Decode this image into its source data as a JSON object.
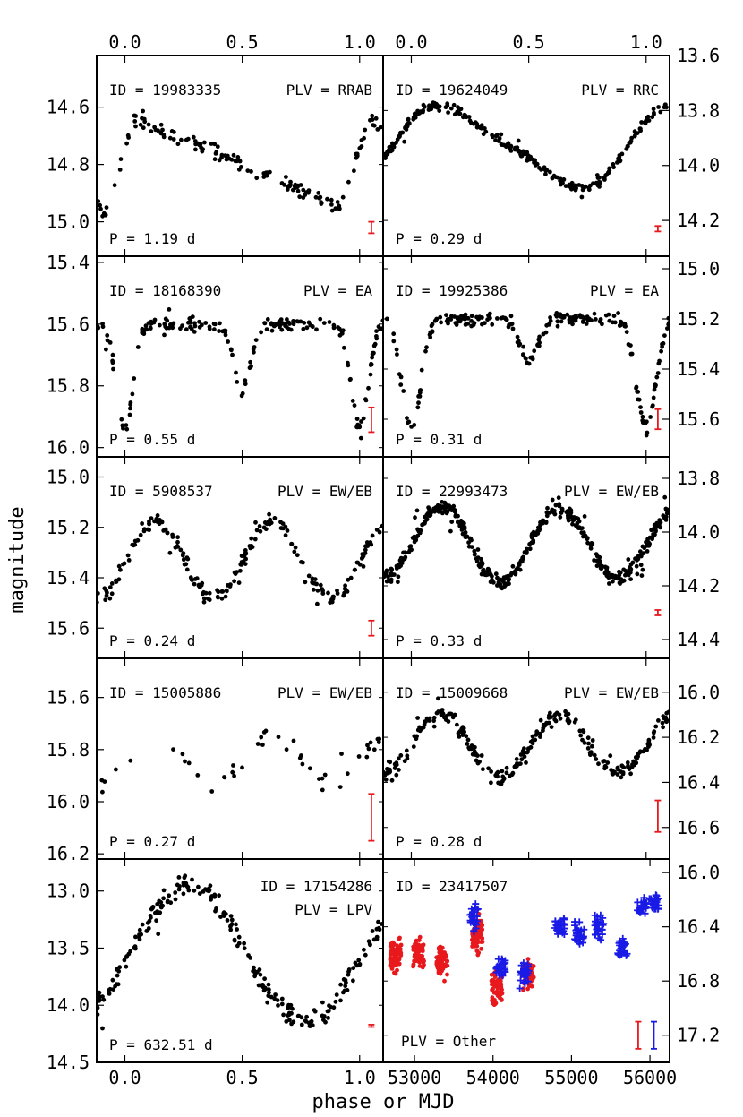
{
  "chart_data": {
    "type": "scatter",
    "xlabel": "phase or MJD",
    "ylabel": "magnitude",
    "top_axis": {
      "xlim": [
        -0.12,
        1.1
      ],
      "ticks": [
        0.0,
        0.5,
        1.0
      ],
      "tick_labels": [
        "0.0",
        "0.5",
        "1.0"
      ]
    },
    "bottom_left_axis": {
      "xlim": [
        -0.12,
        1.1
      ],
      "ticks": [
        0.0,
        0.5,
        1.0
      ],
      "tick_labels": [
        "0.0",
        "0.5",
        "1.0"
      ]
    },
    "bottom_right_axis": {
      "xlim": [
        52600,
        56250
      ],
      "ticks": [
        53000,
        54000,
        55000,
        56000
      ],
      "tick_labels": [
        "53000",
        "54000",
        "55000",
        "56000"
      ]
    },
    "panels": [
      {
        "id_text": "ID = 19983335",
        "plv_text": "PLV = RRAB",
        "period_text": "P = 1.19 d",
        "class": "RRAB",
        "period_days": 1.19,
        "side": "left",
        "ylim": [
          15.12,
          14.42
        ],
        "yticks": [
          14.6,
          14.8,
          15.0
        ],
        "ytick_labels": [
          "14.6",
          "14.8",
          "15.0"
        ],
        "errbar": {
          "x": 1.05,
          "y": 15.02,
          "err": 0.02
        },
        "curve": {
          "kind": "rrab",
          "base": 14.64,
          "amp": 0.32,
          "peak": 0.04,
          "n": 150,
          "scatter": 0.02
        },
        "markers": []
      },
      {
        "id_text": "ID = 19624049",
        "plv_text": "PLV = RRC",
        "period_text": "P = 0.29 d",
        "class": "RRC",
        "period_days": 0.29,
        "side": "right",
        "ylim": [
          14.33,
          13.6
        ],
        "yticks": [
          13.6,
          13.8,
          14.0,
          14.2
        ],
        "ytick_labels": [
          "13.6",
          "13.8",
          "14.0",
          "14.2"
        ],
        "errbar": {
          "x": 1.05,
          "y": 14.23,
          "err": 0.01
        },
        "curve": {
          "kind": "rrc",
          "base": 13.93,
          "amp": 0.14,
          "peak": 0.17,
          "n": 270,
          "scatter": 0.012
        },
        "markers": []
      },
      {
        "id_text": "ID = 18168390",
        "plv_text": "PLV = EA",
        "period_text": "P = 0.55 d",
        "class": "EA",
        "period_days": 0.55,
        "side": "left",
        "ylim": [
          16.03,
          15.38
        ],
        "yticks": [
          15.4,
          15.6,
          15.8,
          16.0
        ],
        "ytick_labels": [
          "15.4",
          "15.6",
          "15.8",
          "16.0"
        ],
        "errbar": {
          "x": 1.05,
          "y": 15.91,
          "err": 0.04
        },
        "curve": {
          "kind": "ea",
          "base": 15.6,
          "d1": 0.34,
          "d2": 0.22,
          "w": 0.035,
          "n": 190,
          "scatter": 0.02
        },
        "markers": []
      },
      {
        "id_text": "ID = 19925386",
        "plv_text": "PLV = EA",
        "period_text": "P = 0.31 d",
        "class": "EA",
        "period_days": 0.31,
        "side": "right",
        "ylim": [
          15.75,
          14.95
        ],
        "yticks": [
          15.0,
          15.2,
          15.4,
          15.6
        ],
        "ytick_labels": [
          "15.0",
          "15.2",
          "15.4",
          "15.6"
        ],
        "errbar": {
          "x": 1.05,
          "y": 15.6,
          "err": 0.04
        },
        "curve": {
          "kind": "ea",
          "base": 15.2,
          "d1": 0.44,
          "d2": 0.16,
          "w": 0.04,
          "n": 230,
          "scatter": 0.02
        },
        "markers": []
      },
      {
        "id_text": "ID = 5908537",
        "plv_text": "PLV = EW/EB",
        "period_text": "P = 0.24 d",
        "class": "EW/EB",
        "period_days": 0.24,
        "side": "left",
        "ylim": [
          15.72,
          14.92
        ],
        "yticks": [
          15.0,
          15.2,
          15.4,
          15.6
        ],
        "ytick_labels": [
          "15.0",
          "15.2",
          "15.4",
          "15.6"
        ],
        "errbar": {
          "x": 1.05,
          "y": 15.6,
          "err": 0.03
        },
        "curve": {
          "kind": "ew",
          "base": 15.18,
          "a1": 0.3,
          "a2": 0.3,
          "n": 210,
          "scatter": 0.025
        },
        "markers": []
      },
      {
        "id_text": "ID = 22993473",
        "plv_text": "PLV = EW/EB",
        "period_text": "P = 0.33 d",
        "class": "EW/EB",
        "period_days": 0.33,
        "side": "right",
        "ylim": [
          14.47,
          13.72
        ],
        "yticks": [
          13.8,
          14.0,
          14.2,
          14.4
        ],
        "ytick_labels": [
          "13.8",
          "14.0",
          "14.2",
          "14.4"
        ],
        "errbar": {
          "x": 1.05,
          "y": 14.3,
          "err": 0.01
        },
        "curve": {
          "kind": "ew",
          "base": 13.91,
          "a1": 0.28,
          "a2": 0.26,
          "n": 420,
          "scatter": 0.025
        },
        "markers": []
      },
      {
        "id_text": "ID = 15005886",
        "plv_text": "PLV = EW/EB",
        "period_text": "P = 0.27 d",
        "class": "EW/EB",
        "period_days": 0.27,
        "side": "left",
        "ylim": [
          16.22,
          15.45
        ],
        "yticks": [
          15.6,
          15.8,
          16.0,
          16.2
        ],
        "ytick_labels": [
          "15.6",
          "15.8",
          "16.0",
          "16.2"
        ],
        "errbar": {
          "x": 1.05,
          "y": 16.06,
          "err": 0.09
        },
        "curve": {
          "kind": "ew",
          "base": 15.74,
          "a1": 0.2,
          "a2": 0.2,
          "n": 45,
          "scatter": 0.035
        },
        "markers": []
      },
      {
        "id_text": "ID = 15009668",
        "plv_text": "PLV = EW/EB",
        "period_text": "P = 0.28 d",
        "class": "EW/EB",
        "period_days": 0.28,
        "side": "right",
        "ylim": [
          16.74,
          15.85
        ],
        "yticks": [
          16.0,
          16.2,
          16.4,
          16.6
        ],
        "ytick_labels": [
          "16.0",
          "16.2",
          "16.4",
          "16.6"
        ],
        "errbar": {
          "x": 1.05,
          "y": 16.55,
          "err": 0.07
        },
        "curve": {
          "kind": "ew",
          "base": 16.1,
          "a1": 0.28,
          "a2": 0.26,
          "n": 260,
          "scatter": 0.03
        },
        "markers": []
      },
      {
        "id_text": "ID = 17154286",
        "plv_text": "PLV = LPV",
        "period_text": "P = 632.51 d",
        "class": "LPV",
        "period_days": 632.51,
        "side": "left",
        "ylim": [
          14.5,
          12.72
        ],
        "yticks": [
          13.0,
          13.5,
          14.0,
          14.5
        ],
        "ytick_labels": [
          "13.0",
          "13.5",
          "14.0",
          "14.5"
        ],
        "errbar": {
          "x": 1.05,
          "y": 14.18,
          "err": 0.01
        },
        "curve": {
          "kind": "lpv",
          "base": 13.55,
          "amp": 0.6,
          "n": 230,
          "scatter": 0.08
        },
        "markers": []
      },
      {
        "id_text": "ID = 23417507",
        "plv_text": "PLV = Other",
        "period_text": "",
        "class": "Other",
        "period_days": null,
        "side": "right",
        "ylim": [
          17.4,
          15.9
        ],
        "yticks": [
          16.0,
          16.4,
          16.8,
          17.2
        ],
        "ytick_labels": [
          "16.0",
          "16.4",
          "16.8",
          "17.2"
        ],
        "errbar": {
          "x": 55850,
          "y": 17.2,
          "err": 0.1,
          "x2": 56050,
          "err2": 0.1
        },
        "curve": {
          "kind": "mjd"
        },
        "series_colors": {
          "red": "#e8191d",
          "blue": "#1a1ae6"
        },
        "clusters_red": [
          [
            52760,
            16.6,
            0.1
          ],
          [
            53050,
            16.6,
            0.1
          ],
          [
            53350,
            16.65,
            0.1
          ],
          [
            53800,
            16.45,
            0.12
          ],
          [
            54050,
            16.85,
            0.12
          ],
          [
            54450,
            16.75,
            0.08
          ]
        ],
        "clusters_blue": [
          [
            53750,
            16.35,
            0.09
          ],
          [
            54100,
            16.7,
            0.08
          ],
          [
            54400,
            16.75,
            0.07
          ],
          [
            54850,
            16.4,
            0.05
          ],
          [
            55100,
            16.45,
            0.06
          ],
          [
            55350,
            16.4,
            0.1
          ],
          [
            55650,
            16.55,
            0.06
          ],
          [
            55900,
            16.25,
            0.04
          ],
          [
            56050,
            16.22,
            0.05
          ]
        ]
      }
    ]
  }
}
